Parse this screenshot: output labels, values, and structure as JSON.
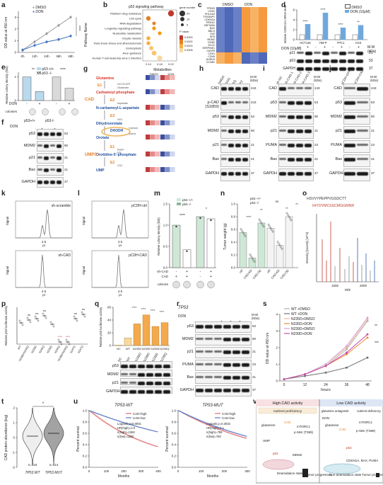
{
  "panel_labels": [
    "a",
    "b",
    "c",
    "d",
    "e",
    "f",
    "g",
    "h",
    "i",
    "j",
    "k",
    "l",
    "m",
    "n",
    "o",
    "p",
    "q",
    "r",
    "s",
    "t",
    "u",
    "v"
  ],
  "panel_a": {
    "ylabel": "OD value at 450 nm",
    "legend": [
      "DMSO",
      "DON"
    ],
    "x": [
      "0h",
      "12h",
      "24h",
      "36h",
      "48h"
    ],
    "sig": "****",
    "chart_data": {
      "type": "line",
      "categories": [
        "0h",
        "12h",
        "24h",
        "36h",
        "48h"
      ],
      "series": [
        {
          "name": "DMSO",
          "values": [
            0.2,
            0.9,
            1.6,
            2.3,
            3.0
          ]
        },
        {
          "name": "DON",
          "values": [
            0.2,
            0.6,
            0.9,
            1.1,
            1.4
          ]
        }
      ],
      "ylim": [
        0,
        3.5
      ],
      "ticks": [
        "0",
        "1",
        "2",
        "3"
      ]
    }
  },
  "panel_b": {
    "title": "p53 signaling pathway",
    "ylabel": "Pathway Name",
    "xlabel": "Rich Factor",
    "pathways": [
      "Platinum drug resistance",
      "Cell cycle",
      "RNA degradation",
      "Longevity regulating pathway",
      "Nucleotide metabolism",
      "Oocyte meiosis",
      "Fluid shear stress and atherosclerosis",
      "Endocytosis",
      "Axon guidance",
      "Human T-cell leukemia virus 1 infection"
    ],
    "xticks": [
      "0.14",
      "0.18",
      "0.22"
    ],
    "legend_size_title": "gene number",
    "legend_size": [
      "20",
      "10",
      "5"
    ],
    "legend_color_title": "P value",
    "legend_color": [
      "0.0000",
      "0.0002",
      "0.0004",
      "0.0006"
    ]
  },
  "panel_c": {
    "groups": [
      "DMSO",
      "DON"
    ],
    "genes": [
      "TP53I3",
      "CDK2",
      "PHLDA3",
      "TP53INP1",
      "CDKN1A",
      "PPM1D",
      "ZNF365A",
      "BAX",
      "BBC3",
      "FAS",
      "SFN",
      "MDM2",
      "DDB2",
      "SCO2",
      "SERPINE1",
      "CASP8",
      "CDK1",
      "CDK6",
      "AURKA",
      "CCNB1"
    ],
    "row_pattern": [
      [
        0,
        0,
        0,
        1,
        1,
        1
      ],
      [
        0,
        0,
        0,
        1,
        1,
        1
      ],
      [
        0,
        0,
        0,
        1,
        1,
        1
      ],
      [
        0,
        0,
        0,
        1,
        1,
        1
      ],
      [
        0,
        0,
        0,
        1,
        1,
        1
      ],
      [
        0,
        0,
        0,
        1,
        1,
        1
      ],
      [
        0,
        0,
        0,
        1,
        1,
        1
      ],
      [
        0,
        0,
        0,
        1,
        1,
        1
      ],
      [
        0,
        0,
        0,
        1,
        1,
        1
      ],
      [
        0,
        0,
        0,
        1,
        1,
        1
      ],
      [
        0,
        0,
        0,
        1,
        1,
        1
      ],
      [
        0,
        0,
        0,
        1,
        1,
        1
      ],
      [
        0,
        0,
        0,
        1,
        1,
        1
      ],
      [
        0,
        0,
        0,
        1,
        1,
        1
      ],
      [
        0,
        0,
        0,
        1,
        1,
        1
      ],
      [
        0,
        0,
        0,
        1,
        1,
        1
      ],
      [
        1,
        1,
        1,
        0,
        0,
        0
      ],
      [
        1,
        1,
        1,
        0,
        0,
        0
      ],
      [
        1,
        1,
        1,
        0,
        0,
        0
      ],
      [
        1,
        1,
        1,
        0,
        0,
        0
      ]
    ],
    "colors": {
      "low": "#4f68b8",
      "high": "#f59a3f"
    }
  },
  "panel_d": {
    "ylabel": "relative CDKN1A mRNA level",
    "legend": [
      "DMSO",
      "DON (10μM)"
    ],
    "cells": [
      "HCT116",
      "769-P",
      "TPC1",
      "AGS"
    ],
    "chart_data": {
      "type": "bar",
      "categories": [
        "HCT116",
        "769-P",
        "TPC1",
        "AGS"
      ],
      "series": [
        {
          "name": "DMSO",
          "values": [
            1,
            1,
            1,
            1
          ]
        },
        {
          "name": "DON (10μM)",
          "values": [
            3.1,
            5.4,
            2.4,
            2.9
          ]
        }
      ],
      "ylim": [
        0,
        6
      ],
      "ticks": [
        "0",
        "2",
        "4",
        "6"
      ]
    },
    "sig": [
      "****",
      "****",
      "****",
      "**"
    ],
    "blot_row_label": "DON (10μM)",
    "blot_signs": [
      "-",
      "+",
      "-",
      "+",
      "-",
      "+",
      "-",
      "+"
    ],
    "blot_labels": [
      "p21",
      "p53",
      "GAPDH"
    ],
    "mw_title": "M.W (kDa)",
    "mw": [
      "21",
      "53",
      "37"
    ]
  },
  "panel_e": {
    "ylabel": "Relative colony density (fold)",
    "legend": [
      "p53 +/+",
      "p53 -/-"
    ],
    "chart_data": {
      "type": "bar",
      "categories": [
        "-",
        "+",
        "-",
        "+"
      ],
      "values": [
        1.0,
        0.38,
        1.0,
        0.52
      ],
      "ylim": [
        0,
        1.2
      ],
      "ticks": [
        "0",
        "1"
      ]
    },
    "xrow_label": "DON",
    "sig": [
      "**",
      "****"
    ],
    "colonies_label": "colonies"
  },
  "panel_f": {
    "top": [
      "p53+/+",
      "p53-/-"
    ],
    "don_label": "DON",
    "signs": [
      "-",
      "+",
      "-",
      "+"
    ],
    "labels": [
      "p53",
      "MDM2",
      "p21",
      "Bax",
      "GAPDH"
    ],
    "mw_title": "M.W (kDa)",
    "mw": [
      "53",
      "90",
      "21",
      "21",
      "37"
    ]
  },
  "panel_g": {
    "metab_title": "Metabolites",
    "groups": [
      "DMSO",
      "DON"
    ],
    "metabolites": [
      "Glutamine",
      "Carbamoyl phosphate",
      "N-carbamoyl-L-aspartate",
      "Dihydroorotate",
      "Orotate",
      "Orotidine-5'-phosphate",
      "UMP"
    ],
    "enzymes": [
      "E1",
      "E2",
      "E3",
      "DHODH",
      "E1",
      "E2"
    ],
    "side_labels": [
      "CAD",
      "UMPS"
    ],
    "cofactors": [
      "HCO3+ATP",
      "Glutamate",
      "Aspartate",
      "H2O",
      "Quinone",
      "Quinol",
      "PRPP",
      "PPi",
      "CO2"
    ]
  },
  "panel_h": {
    "cols": [
      "DMSO",
      "DON",
      "SQ",
      "PZ"
    ],
    "labels": [
      "CAD",
      "p-CAD (S1859)",
      "p53",
      "MDM2",
      "p21",
      "Bax",
      "GAPDH"
    ],
    "mw_title": "M.W (kDa)",
    "mw": [
      "243",
      "243",
      "53",
      "90",
      "21",
      "21",
      "37"
    ]
  },
  "panel_i": {
    "cols": [
      "sh-NC",
      "sh-CAD-1",
      "sh-CAD-2",
      "sh-CAD-3"
    ],
    "labels": [
      "CAD",
      "p53",
      "MDM2",
      "p21",
      "PUMA",
      "Bax",
      "GAPDH"
    ],
    "mw_title": "M.W (kDa)",
    "mw": [
      "243",
      "53",
      "90",
      "21",
      "23",
      "21",
      "37"
    ]
  },
  "panel_j": {
    "cols": [
      "pCDH-GFP",
      "pCDH-CAD"
    ],
    "labels": [
      "CAD",
      "p53",
      "MDM2",
      "p21",
      "PUMA",
      "Bax",
      "GAPDH"
    ],
    "mw_title": "M.W (kDa)",
    "mw": [
      "243",
      "53",
      "90",
      "21",
      "23",
      "21",
      "37"
    ]
  },
  "panel_k": {
    "top_label": "sh-scramble",
    "bottom_label": "sh-CAD",
    "ylabel": "Signal",
    "xlabel": "pI",
    "xtick": "4.5"
  },
  "panel_l": {
    "top_label": "pCDH-ctrl",
    "bottom_label": "pCDH-CAD",
    "ylabel": "Signal",
    "xlabel": "pI",
    "xtick": "4.5"
  },
  "panel_m": {
    "ylabel": "Relative colony density (fold)",
    "legend": [
      "p53 +/+",
      "p53 -/-"
    ],
    "chart_data": {
      "type": "bar",
      "categories": [
        "-",
        "+",
        "-",
        "+"
      ],
      "values": [
        1.0,
        0.42,
        1.2,
        1.15
      ],
      "ylim": [
        0,
        1.5
      ],
      "ticks": [
        "0.0",
        "0.5",
        "1.0",
        "1.5"
      ]
    },
    "sig": [
      "****",
      "*"
    ],
    "xrow1": "sh-CAD",
    "xrow2": "CAD",
    "colonies_label": "colonies"
  },
  "panel_n": {
    "ylabel": "Tumor weight (g)",
    "legend": [
      "p53 +/+",
      "p53 -/-"
    ],
    "chart_data": {
      "type": "scatter",
      "categories": [
        "ctrl",
        "CAD-KD",
        "CAD-OE",
        "ctrl",
        "CAD-KD",
        "CAD-OE"
      ],
      "values": [
        0.55,
        0.15,
        0.7,
        0.62,
        0.35,
        0.8
      ],
      "ylim": [
        0,
        1.0
      ],
      "ticks": [
        "0.0",
        "0.2",
        "0.4",
        "0.6",
        "0.8",
        "1.0"
      ]
    },
    "sig": [
      "****",
      "**",
      "ns",
      "**",
      "**"
    ]
  },
  "panel_o": {
    "seq1": "HSVVYPEPPVGSDCTT",
    "seq2": "IHYOYMCSSCMGGMNR",
    "xlabel": "m/z",
    "ylabel": "Intensity [counts] (10^3)",
    "xticks": [
      "1000",
      "2000"
    ]
  },
  "panel_p": {
    "ylabel": "Relative p53 luciferase activity",
    "cats": [
      "WT",
      "N239D/N240Q",
      "N239D",
      "N240Q",
      "N239D",
      "N240Q",
      "N239D/N240Q",
      "N247D",
      "N247Q"
    ],
    "sig": [
      "ns",
      "ns",
      "ns",
      "****",
      "****",
      "ns",
      "ns"
    ]
  },
  "panel_q": {
    "ylabel": "Relative p53 luciferase activity",
    "cats": [
      "NC",
      "WT",
      "N235D",
      "N239D",
      "N235E",
      "N239Q"
    ],
    "chart_data": {
      "type": "bar",
      "categories": [
        "NC",
        "WT",
        "N235D",
        "N239D",
        "N235E",
        "N239Q"
      ],
      "values": [
        0.5,
        12,
        34,
        48,
        30,
        36
      ],
      "ylim": [
        0,
        60
      ],
      "ticks": [
        "0",
        "20",
        "40",
        "60"
      ]
    },
    "sig": [
      "****",
      "****",
      "****",
      "****"
    ],
    "blot_labels": [
      "p53",
      "MDM2",
      "p21",
      "GAPDH"
    ]
  },
  "panel_r": {
    "title": "TP53",
    "cols": [
      "WT",
      "N235D",
      "N239D",
      "WT",
      "N235D",
      "N239D"
    ],
    "don_label": "DON",
    "signs": [
      "-",
      "-",
      "-",
      "+",
      "+",
      "+"
    ],
    "labels": [
      "p53",
      "MDM2",
      "p21",
      "PUMA",
      "Bax",
      "GAPDH"
    ],
    "mw_title": "M.W (kDa)",
    "mw": [
      "53",
      "90",
      "21",
      "23",
      "21",
      "37"
    ]
  },
  "panel_s": {
    "ylabel": "OD value at 450 nm",
    "xlabel": "hours",
    "legend": [
      "WT +DMSO",
      "WT +DON",
      "N235D+DMSO",
      "N235D+DON",
      "N239D+DMSO",
      "N239D+DON"
    ],
    "chart_data": {
      "type": "line",
      "categories": [
        "0",
        "12",
        "24",
        "36",
        "48"
      ],
      "series": [
        {
          "name": "WT +DMSO",
          "values": [
            0.1,
            0.4,
            0.9,
            1.9,
            3.6
          ]
        },
        {
          "name": "WT +DON",
          "values": [
            0.1,
            0.3,
            0.5,
            0.8,
            1.4
          ]
        },
        {
          "name": "N235D+DMSO",
          "values": [
            0.1,
            0.4,
            1.0,
            2.0,
            3.7
          ]
        },
        {
          "name": "N235D+DON",
          "values": [
            0.1,
            0.4,
            0.9,
            1.6,
            2.6
          ]
        },
        {
          "name": "N239D+DMSO",
          "values": [
            0.1,
            0.4,
            1.0,
            2.1,
            3.8
          ]
        },
        {
          "name": "N239D+DON",
          "values": [
            0.1,
            0.4,
            0.9,
            1.7,
            2.8
          ]
        }
      ],
      "ylim": [
        0,
        4
      ],
      "ticks": [
        "0",
        "1",
        "2",
        "3",
        "4"
      ]
    },
    "sig": [
      "**",
      "***"
    ],
    "colors": [
      "#b0b0b0",
      "#707070",
      "#f2b8a0",
      "#ef8a3a",
      "#d8a4d8",
      "#c04fa8"
    ]
  },
  "panel_t": {
    "ylabel": "CAD protein abundance (log)",
    "xlabels": [
      "TP53 WT",
      "TP53 MUT"
    ],
    "n": [
      "n=316",
      "n=414"
    ],
    "sig": "*",
    "yticks": [
      "-2",
      "-1",
      "0",
      "1",
      "2"
    ]
  },
  "panel_u": {
    "left": {
      "title": "TP53-WT",
      "legend": [
        "CAD-high",
        "CAD-low"
      ],
      "stats": [
        "Logrank p<0.0001",
        "HR(high)=2.0",
        "n(high)=1350",
        "n(low)=1350"
      ],
      "xlabel": "Months",
      "ylabel": "Percent survival",
      "xticks": [
        "0",
        "100",
        "200",
        "300",
        "400"
      ]
    },
    "right": {
      "title": "TP53-MUT",
      "legend": [
        "CAD-high",
        "CAD-low"
      ],
      "stats": [
        "Logrank p=0.3033",
        "HR(high)=1.1",
        "n(high)=759",
        "n(low)=760"
      ],
      "xlabel": "Months",
      "ylabel": "Percent survival",
      "xticks": [
        "0",
        "100",
        "200",
        "300"
      ]
    },
    "yticks": [
      "0.0",
      "0.2",
      "0.4",
      "0.6",
      "0.8",
      "1.0"
    ]
  },
  "panel_v": {
    "left_title": "High CAD activity",
    "right_title": "Low CAD activity",
    "left_sub": "nutrient proficiency",
    "right_sub1": "glutamine antagonist",
    "right_sub2": "nutrient deficiency",
    "left_labels": [
      "glutamine",
      "CAD",
      "mTORC1",
      "p-S6K (T389)",
      "UMP",
      "p53",
      "MDM2",
      "Deamidation state",
      "Tumor progression"
    ],
    "right_labels": [
      "DON",
      "glutamine",
      "CAD",
      "mTORC1",
      "p-S6K (T389)",
      "p53",
      "CDKN1A, BAX, PUMA",
      "Non-deamidation state",
      "Tumor progression"
    ]
  }
}
